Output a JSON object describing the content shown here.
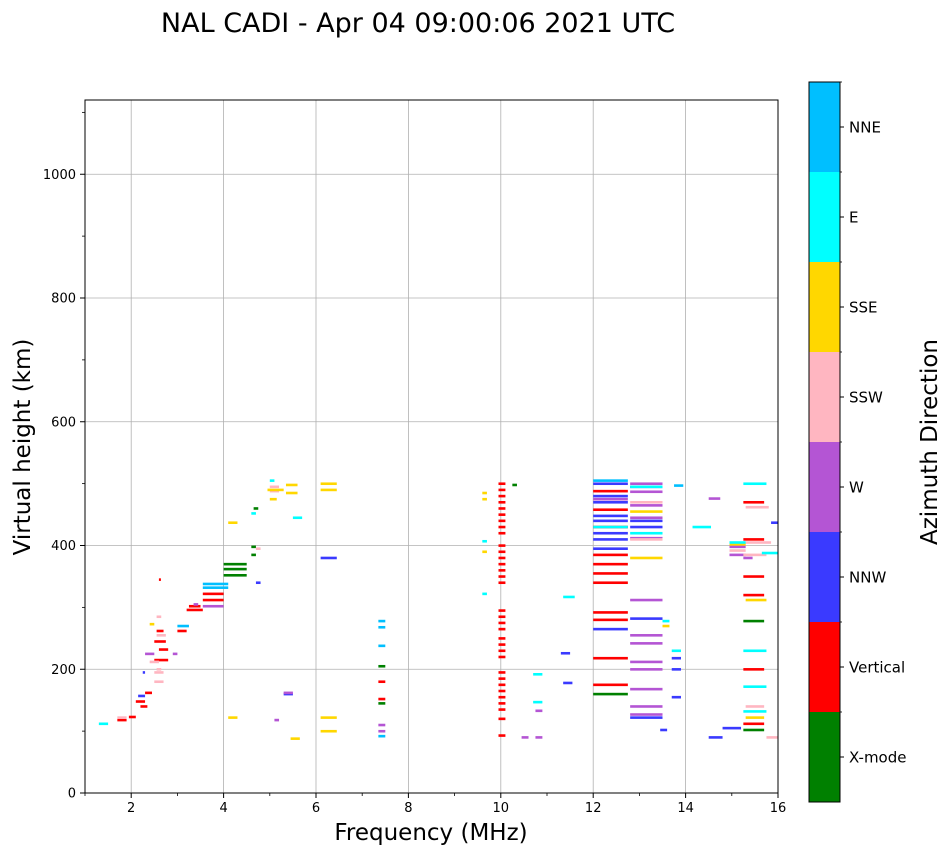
{
  "chart_data": {
    "type": "scatter",
    "title": "NAL CADI - Apr 04 09:00:06 2021 UTC",
    "xlabel": "Frequency (MHz)",
    "ylabel": "Virtual height (km)",
    "xlim": [
      1,
      16
    ],
    "ylim": [
      0,
      1120
    ],
    "xticks": [
      2,
      4,
      6,
      8,
      10,
      12,
      14,
      16
    ],
    "yticks": [
      0,
      200,
      400,
      600,
      800,
      1000
    ],
    "grid": true,
    "colorbar": {
      "label": "Azimuth Direction",
      "position": "right",
      "categories": [
        {
          "name": "X-mode",
          "color": "#008000"
        },
        {
          "name": "Vertical",
          "color": "#ff0000"
        },
        {
          "name": "NNW",
          "color": "#3a3aff"
        },
        {
          "name": "W",
          "color": "#b455d4"
        },
        {
          "name": "SSW",
          "color": "#ffb6c1"
        },
        {
          "name": "SSE",
          "color": "#ffd700"
        },
        {
          "name": "E",
          "color": "#00ffff"
        },
        {
          "name": "NNE",
          "color": "#00bfff"
        }
      ]
    },
    "series": [
      {
        "name": "X-mode",
        "color": "#008000",
        "points": [
          [
            4.0,
            352,
            4.5
          ],
          [
            4.0,
            362,
            4.5
          ],
          [
            4.0,
            370,
            4.5
          ],
          [
            4.6,
            385,
            4.7
          ],
          [
            4.6,
            398,
            4.7
          ],
          [
            4.65,
            460,
            4.75
          ],
          [
            10.25,
            498,
            10.35
          ],
          [
            7.35,
            205,
            7.5
          ],
          [
            7.35,
            145,
            7.5
          ],
          [
            12.0,
            160,
            12.75
          ],
          [
            15.25,
            278,
            15.7
          ],
          [
            15.25,
            102,
            15.7
          ]
        ]
      },
      {
        "name": "Vertical",
        "color": "#ff0000",
        "points": [
          [
            1.7,
            118,
            1.9
          ],
          [
            1.95,
            123,
            2.1
          ],
          [
            2.1,
            148,
            2.3
          ],
          [
            2.2,
            140,
            2.35
          ],
          [
            2.3,
            162,
            2.45
          ],
          [
            2.5,
            215,
            2.8
          ],
          [
            2.6,
            232,
            2.8
          ],
          [
            2.5,
            245,
            2.75
          ],
          [
            2.55,
            262,
            2.7
          ],
          [
            2.6,
            345,
            2.62
          ],
          [
            3.0,
            262,
            3.2
          ],
          [
            3.2,
            296,
            3.55
          ],
          [
            3.25,
            302,
            3.5
          ],
          [
            3.55,
            312,
            4.0
          ],
          [
            3.55,
            322,
            4.0
          ],
          [
            9.95,
            500,
            10.1
          ],
          [
            9.95,
            490,
            10.1
          ],
          [
            9.95,
            480,
            10.1
          ],
          [
            9.95,
            470,
            10.1
          ],
          [
            9.95,
            460,
            10.1
          ],
          [
            9.95,
            450,
            10.1
          ],
          [
            9.95,
            440,
            10.1
          ],
          [
            9.95,
            430,
            10.1
          ],
          [
            9.95,
            420,
            10.1
          ],
          [
            9.95,
            400,
            10.1
          ],
          [
            9.95,
            390,
            10.1
          ],
          [
            9.95,
            380,
            10.1
          ],
          [
            9.95,
            370,
            10.1
          ],
          [
            9.95,
            360,
            10.1
          ],
          [
            9.95,
            350,
            10.1
          ],
          [
            9.95,
            340,
            10.1
          ],
          [
            9.95,
            295,
            10.1
          ],
          [
            9.95,
            285,
            10.1
          ],
          [
            9.95,
            275,
            10.1
          ],
          [
            9.95,
            265,
            10.1
          ],
          [
            9.95,
            250,
            10.1
          ],
          [
            9.95,
            240,
            10.1
          ],
          [
            9.95,
            230,
            10.1
          ],
          [
            9.95,
            220,
            10.1
          ],
          [
            9.95,
            195,
            10.1
          ],
          [
            9.95,
            185,
            10.1
          ],
          [
            9.95,
            175,
            10.1
          ],
          [
            9.95,
            165,
            10.1
          ],
          [
            9.95,
            155,
            10.1
          ],
          [
            9.95,
            145,
            10.1
          ],
          [
            9.95,
            135,
            10.1
          ],
          [
            9.95,
            120,
            10.1
          ],
          [
            9.95,
            93,
            10.1
          ],
          [
            7.35,
            180,
            7.5
          ],
          [
            7.35,
            152,
            7.5
          ],
          [
            12.0,
            488,
            12.75
          ],
          [
            12.0,
            458,
            12.75
          ],
          [
            12.0,
            430,
            12.75
          ],
          [
            12.0,
            385,
            12.75
          ],
          [
            12.0,
            370,
            12.75
          ],
          [
            12.0,
            355,
            12.75
          ],
          [
            12.0,
            340,
            12.75
          ],
          [
            12.0,
            292,
            12.75
          ],
          [
            12.0,
            280,
            12.75
          ],
          [
            12.0,
            218,
            12.75
          ],
          [
            12.0,
            175,
            12.75
          ],
          [
            15.25,
            470,
            15.7
          ],
          [
            15.25,
            410,
            15.7
          ],
          [
            15.25,
            350,
            15.7
          ],
          [
            15.25,
            320,
            15.7
          ],
          [
            15.25,
            200,
            15.7
          ],
          [
            15.25,
            112,
            15.7
          ]
        ]
      },
      {
        "name": "NNW",
        "color": "#3a3aff",
        "points": [
          [
            2.15,
            157,
            2.3
          ],
          [
            2.25,
            195,
            2.3
          ],
          [
            4.7,
            340,
            4.8
          ],
          [
            5.3,
            160,
            5.5
          ],
          [
            6.1,
            380,
            6.45
          ],
          [
            11.3,
            226,
            11.5
          ],
          [
            11.35,
            178,
            11.55
          ],
          [
            12.0,
            500,
            12.75
          ],
          [
            12.0,
            480,
            12.75
          ],
          [
            12.0,
            470,
            12.75
          ],
          [
            12.0,
            448,
            12.75
          ],
          [
            12.0,
            440,
            12.75
          ],
          [
            12.0,
            420,
            12.75
          ],
          [
            12.0,
            410,
            12.75
          ],
          [
            12.0,
            395,
            12.75
          ],
          [
            12.0,
            265,
            12.75
          ],
          [
            12.8,
            495,
            13.5
          ],
          [
            12.8,
            440,
            13.5
          ],
          [
            12.8,
            430,
            13.5
          ],
          [
            12.8,
            282,
            13.5
          ],
          [
            12.8,
            122,
            13.5
          ],
          [
            13.45,
            102,
            13.6
          ],
          [
            13.7,
            218,
            13.9
          ],
          [
            13.7,
            200,
            13.9
          ],
          [
            13.7,
            155,
            13.9
          ],
          [
            14.5,
            90,
            14.8
          ],
          [
            14.8,
            105,
            15.2
          ],
          [
            15.85,
            437,
            16.0
          ]
        ]
      },
      {
        "name": "W",
        "color": "#b455d4",
        "points": [
          [
            2.3,
            225,
            2.5
          ],
          [
            2.9,
            225,
            3.0
          ],
          [
            3.35,
            305,
            3.45
          ],
          [
            3.55,
            302,
            4.0
          ],
          [
            5.3,
            162,
            5.5
          ],
          [
            5.1,
            118,
            5.2
          ],
          [
            7.35,
            110,
            7.5
          ],
          [
            7.35,
            100,
            7.5
          ],
          [
            10.45,
            90,
            10.6
          ],
          [
            10.75,
            90,
            10.9
          ],
          [
            10.75,
            133,
            10.9
          ],
          [
            12.8,
            500,
            13.5
          ],
          [
            12.8,
            487,
            13.5
          ],
          [
            12.8,
            465,
            13.5
          ],
          [
            12.8,
            445,
            13.5
          ],
          [
            12.8,
            412,
            13.5
          ],
          [
            12.8,
            312,
            13.5
          ],
          [
            12.8,
            255,
            13.5
          ],
          [
            12.8,
            242,
            13.5
          ],
          [
            12.8,
            212,
            13.5
          ],
          [
            12.8,
            200,
            13.5
          ],
          [
            12.8,
            168,
            13.5
          ],
          [
            12.8,
            140,
            13.5
          ],
          [
            12.8,
            127,
            13.5
          ],
          [
            12.0,
            475,
            12.75
          ],
          [
            14.5,
            476,
            14.75
          ],
          [
            14.95,
            398,
            15.3
          ],
          [
            14.95,
            385,
            15.3
          ],
          [
            15.25,
            380,
            15.45
          ]
        ]
      },
      {
        "name": "SSW",
        "color": "#ffb6c1",
        "points": [
          [
            1.7,
            122,
            1.9
          ],
          [
            2.4,
            212,
            2.6
          ],
          [
            2.5,
            195,
            2.7
          ],
          [
            2.5,
            180,
            2.7
          ],
          [
            2.55,
            200,
            2.65
          ],
          [
            2.55,
            255,
            2.75
          ],
          [
            2.55,
            285,
            2.65
          ],
          [
            4.7,
            395,
            4.8
          ],
          [
            5.0,
            495,
            5.2
          ],
          [
            5.0,
            488,
            5.2
          ],
          [
            12.8,
            470,
            13.5
          ],
          [
            12.8,
            410,
            13.5
          ],
          [
            14.95,
            392,
            15.3
          ],
          [
            15.3,
            462,
            15.8
          ],
          [
            15.3,
            405,
            15.85
          ],
          [
            15.25,
            385,
            15.75
          ],
          [
            15.75,
            90,
            16.0
          ],
          [
            15.3,
            140,
            15.7
          ]
        ]
      },
      {
        "name": "SSE",
        "color": "#ffd700",
        "points": [
          [
            2.4,
            273,
            2.5
          ],
          [
            4.1,
            437,
            4.3
          ],
          [
            4.1,
            122,
            4.3
          ],
          [
            4.95,
            490,
            5.3
          ],
          [
            5.0,
            475,
            5.15
          ],
          [
            5.35,
            498,
            5.6
          ],
          [
            5.35,
            485,
            5.6
          ],
          [
            6.1,
            500,
            6.45
          ],
          [
            6.1,
            490,
            6.45
          ],
          [
            6.1,
            122,
            6.45
          ],
          [
            6.1,
            100,
            6.45
          ],
          [
            5.45,
            88,
            5.65
          ],
          [
            9.6,
            485,
            9.7
          ],
          [
            9.6,
            475,
            9.7
          ],
          [
            9.6,
            390,
            9.7
          ],
          [
            12.8,
            455,
            13.5
          ],
          [
            12.8,
            380,
            13.5
          ],
          [
            13.5,
            270,
            13.65
          ],
          [
            14.95,
            402,
            15.3
          ],
          [
            15.3,
            312,
            15.75
          ],
          [
            15.3,
            122,
            15.7
          ]
        ]
      },
      {
        "name": "E",
        "color": "#00ffff",
        "points": [
          [
            1.3,
            112,
            1.5
          ],
          [
            4.6,
            452,
            4.7
          ],
          [
            5.0,
            505,
            5.1
          ],
          [
            5.5,
            445,
            5.7
          ],
          [
            9.6,
            407,
            9.7
          ],
          [
            9.6,
            322,
            9.7
          ],
          [
            11.35,
            317,
            11.6
          ],
          [
            10.7,
            192,
            10.9
          ],
          [
            10.7,
            147,
            10.9
          ],
          [
            12.0,
            430,
            12.75
          ],
          [
            12.8,
            495,
            13.5
          ],
          [
            12.8,
            420,
            13.5
          ],
          [
            13.5,
            278,
            13.65
          ],
          [
            13.7,
            230,
            13.9
          ],
          [
            14.15,
            430,
            14.55
          ],
          [
            14.95,
            405,
            15.3
          ],
          [
            15.25,
            500,
            15.75
          ],
          [
            15.25,
            230,
            15.75
          ],
          [
            15.25,
            172,
            15.75
          ],
          [
            15.25,
            132,
            15.75
          ],
          [
            15.65,
            388,
            16.0
          ]
        ]
      },
      {
        "name": "NNE",
        "color": "#00bfff",
        "points": [
          [
            3.55,
            332,
            4.1
          ],
          [
            3.55,
            338,
            4.1
          ],
          [
            3.0,
            270,
            3.25
          ],
          [
            7.35,
            278,
            7.5
          ],
          [
            7.35,
            268,
            7.5
          ],
          [
            7.35,
            238,
            7.5
          ],
          [
            7.35,
            92,
            7.5
          ],
          [
            12.0,
            505,
            12.75
          ],
          [
            13.75,
            497,
            13.95
          ]
        ]
      }
    ]
  }
}
